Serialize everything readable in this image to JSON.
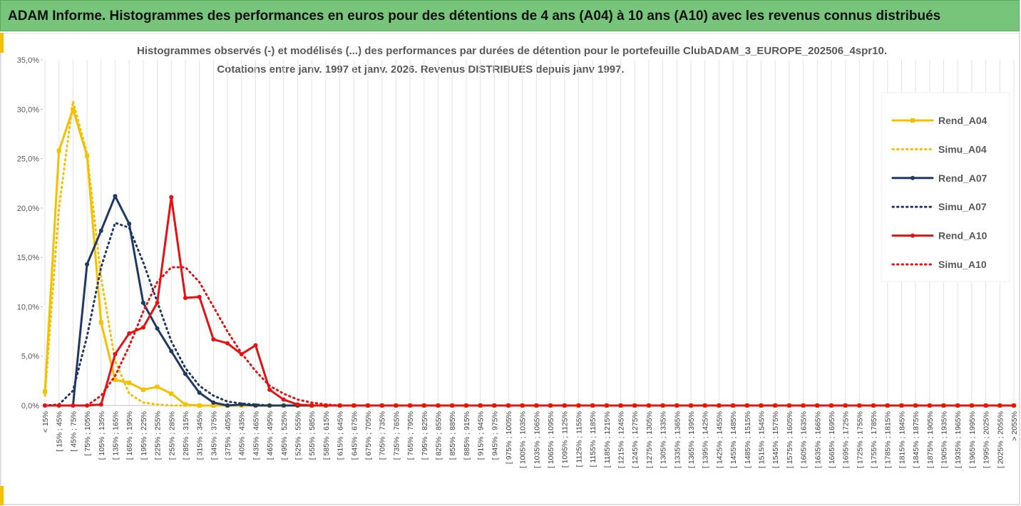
{
  "header": {
    "title": "ADAM Informe. Histogrammes des performances en euros pour des détentions de 4 ans (A04) à 10 ans (A10) avec les revenus connus distribués"
  },
  "chart_data": {
    "type": "line",
    "title": "Histogrammes observés (-) et modélisés (...) des performances par durées de détention pour le portefeuille ClubADAM_3_EUROPE_202506_4spr10.",
    "subtitle": "Cotations entre janv. 1997 et janv. 2026. Revenus DISTRIBUES depuis janv 1997.",
    "categories": [
      "< 15%",
      "[ 15% ; 45%",
      "[ 45% ; 75%",
      "[ 75% ; 105%",
      "[ 105% ; 135%",
      "[ 135% ; 165%",
      "[ 165% ; 195%",
      "[ 195% ; 225%",
      "[ 225% ; 255%",
      "[ 255% ; 285%",
      "[ 285% ; 315%",
      "[ 315% ; 345%",
      "[ 345% ; 375%",
      "[ 375% ; 405%",
      "[ 405% ; 435%",
      "[ 435% ; 465%",
      "[ 465% ; 495%",
      "[ 495% ; 525%",
      "[ 525% ; 555%",
      "[ 555% ; 585%",
      "[ 585% ; 615%",
      "[ 615% ; 645%",
      "[ 645% ; 675%",
      "[ 675% ; 705%",
      "[ 705% ; 735%",
      "[ 735% ; 765%",
      "[ 765% ; 795%",
      "[ 795% ; 825%",
      "[ 825% ; 855%",
      "[ 855% ; 885%",
      "[ 885% ; 915%",
      "[ 915% ; 945%",
      "[ 945% ; 975%",
      "[ 975% ; 1005%",
      "[ 1005% ; 1035%",
      "[ 1035% ; 1065%",
      "[ 1065% ; 1095%",
      "[ 1095% ; 1125%",
      "[ 1125% ; 1155%",
      "[ 1155% ; 1185%",
      "[ 1185% ; 1215%",
      "[ 1215% ; 1245%",
      "[ 1245% ; 1275%",
      "[ 1275% ; 1305%",
      "[ 1305% ; 1335%",
      "[ 1335% ; 1365%",
      "[ 1365% ; 1395%",
      "[ 1395% ; 1425%",
      "[ 1425% ; 1455%",
      "[ 1455% ; 1485%",
      "[ 1485% ; 1515%",
      "[ 1515% ; 1545%",
      "[ 1545% ; 1575%",
      "[ 1575% ; 1605%",
      "[ 1605% ; 1635%",
      "[ 1635% ; 1665%",
      "[ 1665% ; 1695%",
      "[ 1695% ; 1725%",
      "[ 1725% ; 1755%",
      "[ 1755% ; 1785%",
      "[ 1785% ; 1815%",
      "[ 1815% ; 1845%",
      "[ 1845% ; 1875%",
      "[ 1875% ; 1905%",
      "[ 1905% ; 1935%",
      "[ 1935% ; 1965%",
      "[ 1965% ; 1995%",
      "[ 1995% ; 2025%",
      "[ 2025% ; 2055%",
      "> 2055%"
    ],
    "ylim": [
      0,
      35
    ],
    "yticks": [
      {
        "value": 0,
        "label": "0,0%"
      },
      {
        "value": 5,
        "label": "5,0%"
      },
      {
        "value": 10,
        "label": "10,0%"
      },
      {
        "value": 15,
        "label": "15,0%"
      },
      {
        "value": 20,
        "label": "20,0%"
      },
      {
        "value": 25,
        "label": "25,0%"
      },
      {
        "value": 30,
        "label": "30,0%"
      },
      {
        "value": 35,
        "label": "35,0%"
      }
    ],
    "legend": "right",
    "series": [
      {
        "name": "Rend_A04",
        "color": "#f5c000",
        "style": "solid",
        "marker": "square",
        "values": [
          1.4,
          25.8,
          30.0,
          25.3,
          8.4,
          2.6,
          2.3,
          1.6,
          1.9,
          1.2,
          0.1,
          0,
          0,
          0,
          0,
          0,
          0,
          0,
          0,
          0,
          0,
          0,
          0,
          0,
          0,
          0,
          0,
          0,
          0,
          0,
          0,
          0,
          0,
          0,
          0,
          0,
          0,
          0,
          0,
          0,
          0,
          0,
          0,
          0,
          0,
          0,
          0,
          0,
          0,
          0,
          0,
          0,
          0,
          0,
          0,
          0,
          0,
          0,
          0,
          0,
          0,
          0,
          0,
          0,
          0,
          0,
          0,
          0,
          0,
          0
        ]
      },
      {
        "name": "Simu_A04",
        "color": "#f5c000",
        "style": "dotted",
        "marker": null,
        "values": [
          1.0,
          20.0,
          30.8,
          25.5,
          13.0,
          4.5,
          1.2,
          0.3,
          0.1,
          0,
          0,
          0,
          0,
          0,
          0,
          0,
          0,
          0,
          0,
          0,
          0,
          0,
          0,
          0,
          0,
          0,
          0,
          0,
          0,
          0,
          0,
          0,
          0,
          0,
          0,
          0,
          0,
          0,
          0,
          0,
          0,
          0,
          0,
          0,
          0,
          0,
          0,
          0,
          0,
          0,
          0,
          0,
          0,
          0,
          0,
          0,
          0,
          0,
          0,
          0,
          0,
          0,
          0,
          0,
          0,
          0,
          0,
          0,
          0,
          0
        ]
      },
      {
        "name": "Rend_A07",
        "color": "#1f3864",
        "style": "solid",
        "marker": "circle",
        "values": [
          0,
          0,
          0,
          14.3,
          17.7,
          21.2,
          18.4,
          10.4,
          7.8,
          5.5,
          3.2,
          1.3,
          0.3,
          0,
          0.1,
          0,
          0,
          0,
          0,
          0,
          0,
          0,
          0,
          0,
          0,
          0,
          0,
          0,
          0,
          0,
          0,
          0,
          0,
          0,
          0,
          0,
          0,
          0,
          0,
          0,
          0,
          0,
          0,
          0,
          0,
          0,
          0,
          0,
          0,
          0,
          0,
          0,
          0,
          0,
          0,
          0,
          0,
          0,
          0,
          0,
          0,
          0,
          0,
          0,
          0,
          0,
          0,
          0,
          0,
          0
        ]
      },
      {
        "name": "Simu_A07",
        "color": "#1f3864",
        "style": "dotted",
        "marker": null,
        "values": [
          0,
          0.1,
          1.5,
          7.0,
          14.0,
          18.5,
          18.0,
          14.5,
          10.5,
          6.5,
          3.8,
          2.0,
          1.0,
          0.4,
          0.2,
          0.1,
          0,
          0,
          0,
          0,
          0,
          0,
          0,
          0,
          0,
          0,
          0,
          0,
          0,
          0,
          0,
          0,
          0,
          0,
          0,
          0,
          0,
          0,
          0,
          0,
          0,
          0,
          0,
          0,
          0,
          0,
          0,
          0,
          0,
          0,
          0,
          0,
          0,
          0,
          0,
          0,
          0,
          0,
          0,
          0,
          0,
          0,
          0,
          0,
          0,
          0,
          0,
          0,
          0,
          0
        ]
      },
      {
        "name": "Rend_A10",
        "color": "#e81010",
        "style": "solid",
        "marker": "circle",
        "values": [
          0,
          0,
          0,
          0,
          0.1,
          5.2,
          7.3,
          7.9,
          10.4,
          21.1,
          10.9,
          11.0,
          6.7,
          6.3,
          5.2,
          6.1,
          1.6,
          0.6,
          0.1,
          0,
          0,
          0,
          0,
          0,
          0,
          0,
          0,
          0,
          0,
          0,
          0,
          0,
          0,
          0,
          0,
          0,
          0,
          0,
          0,
          0,
          0,
          0,
          0,
          0,
          0,
          0,
          0,
          0,
          0,
          0,
          0,
          0,
          0,
          0,
          0,
          0,
          0,
          0,
          0,
          0,
          0,
          0,
          0,
          0,
          0,
          0,
          0,
          0,
          0,
          0
        ]
      },
      {
        "name": "Simu_A10",
        "color": "#e81010",
        "style": "dotted",
        "marker": null,
        "values": [
          0,
          0,
          0,
          0,
          1.0,
          3.0,
          6.0,
          9.5,
          12.5,
          14.0,
          14.0,
          12.5,
          10.0,
          7.5,
          5.3,
          3.5,
          2.0,
          1.2,
          0.6,
          0.3,
          0.1,
          0,
          0,
          0,
          0,
          0,
          0,
          0,
          0,
          0,
          0,
          0,
          0,
          0,
          0,
          0,
          0,
          0,
          0,
          0,
          0,
          0,
          0,
          0,
          0,
          0,
          0,
          0,
          0,
          0,
          0,
          0,
          0,
          0,
          0,
          0,
          0,
          0,
          0,
          0,
          0,
          0,
          0,
          0,
          0,
          0,
          0,
          0,
          0,
          0
        ]
      }
    ]
  }
}
